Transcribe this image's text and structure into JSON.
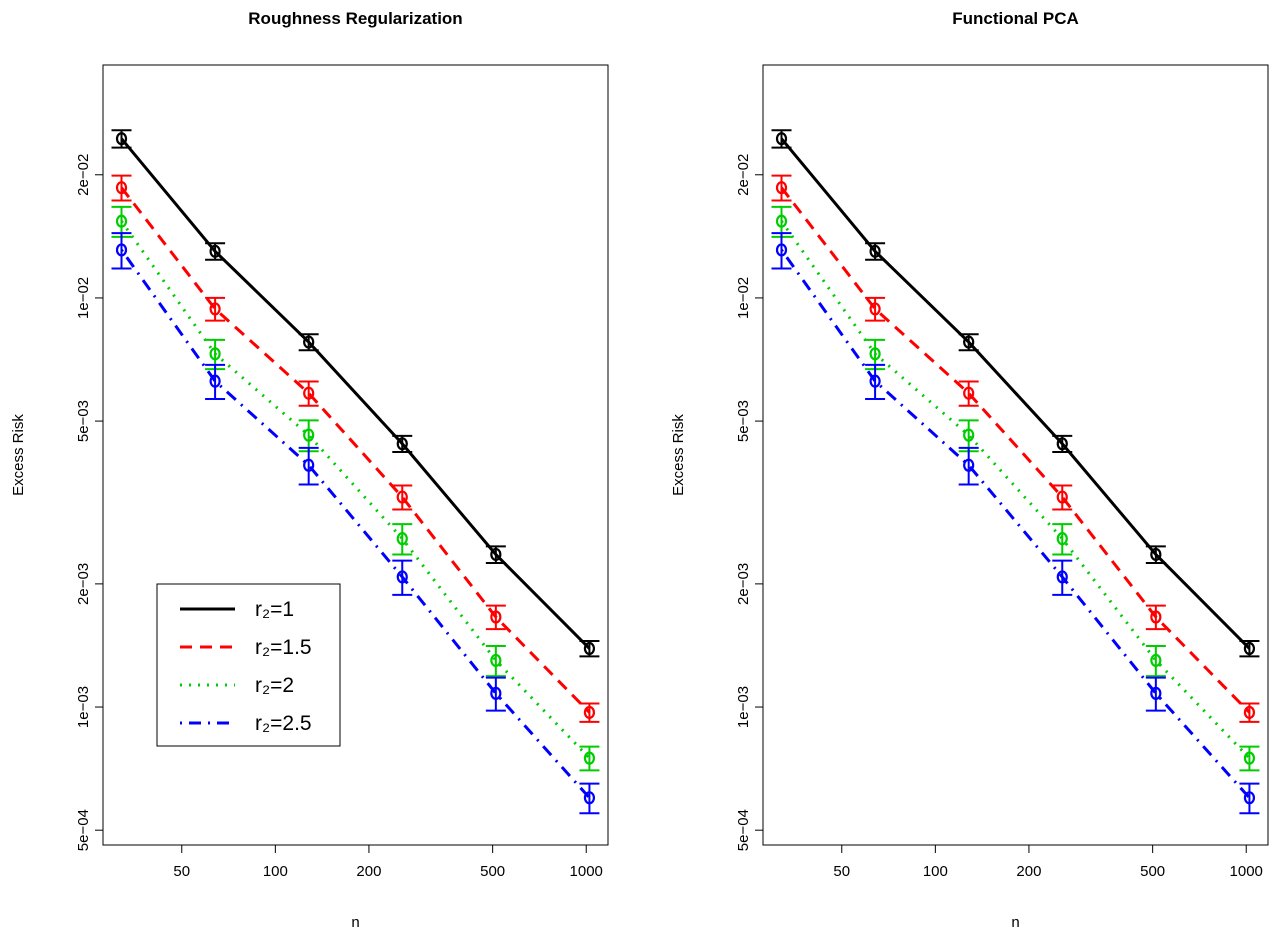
{
  "chart_data": [
    {
      "type": "line",
      "title": "Roughness Regularization",
      "x_label": "n",
      "y_label": "Excess Risk",
      "x": [
        32,
        64,
        128,
        256,
        512,
        1024
      ],
      "xlog": true,
      "ylog": true,
      "xlim": [
        27.9,
        1175
      ],
      "ylim": [
        0.00046,
        0.0371
      ],
      "xticks": [
        50,
        100,
        200,
        500,
        1000
      ],
      "yticks": [
        {
          "value": 0.0005,
          "label": "5e−04"
        },
        {
          "value": 0.001,
          "label": "1e−03"
        },
        {
          "value": 0.002,
          "label": "2e−03"
        },
        {
          "value": 0.005,
          "label": "5e−03"
        },
        {
          "value": 0.01,
          "label": "1e−02"
        },
        {
          "value": 0.02,
          "label": "2e−02"
        }
      ],
      "legend": "bottomleft",
      "series": [
        {
          "name": "r₂=1",
          "color": "#000000",
          "dash": "solid",
          "values": [
            0.0245,
            0.013,
            0.0078,
            0.0044,
            0.00236,
            0.00139
          ],
          "errors": [
            0.0012,
            0.0006,
            0.00035,
            0.0002,
            0.00011,
            6e-05
          ]
        },
        {
          "name": "r₂=1.5",
          "color": "#ff0000",
          "dash": "dashed",
          "values": [
            0.0186,
            0.0094,
            0.00585,
            0.00326,
            0.00166,
            0.00097
          ],
          "errors": [
            0.0013,
            0.0006,
            0.0004,
            0.00022,
            0.00011,
            5e-05
          ]
        },
        {
          "name": "r₂=2",
          "color": "#00cd00",
          "dash": "dotted",
          "values": [
            0.0154,
            0.0073,
            0.00462,
            0.00258,
            0.0013,
            0.00075
          ],
          "errors": [
            0.0013,
            0.0006,
            0.0004,
            0.00022,
            0.00011,
            5e-05
          ]
        },
        {
          "name": "r₂=2.5",
          "color": "#0000ff",
          "dash": "dotdash",
          "values": [
            0.0131,
            0.00626,
            0.0039,
            0.00208,
            0.00108,
            0.0006
          ],
          "errors": [
            0.0013,
            0.0006,
            0.0004,
            0.0002,
            0.0001,
            5e-05
          ]
        }
      ]
    },
    {
      "type": "line",
      "title": "Functional PCA",
      "x_label": "n",
      "y_label": "Excess Risk",
      "x": [
        32,
        64,
        128,
        256,
        512,
        1024
      ],
      "xlog": true,
      "ylog": true,
      "xlim": [
        27.9,
        1175
      ],
      "ylim": [
        0.00046,
        0.0371
      ],
      "xticks": [
        50,
        100,
        200,
        500,
        1000
      ],
      "yticks": [
        {
          "value": 0.0005,
          "label": "5e−04"
        },
        {
          "value": 0.001,
          "label": "1e−03"
        },
        {
          "value": 0.002,
          "label": "2e−03"
        },
        {
          "value": 0.005,
          "label": "5e−03"
        },
        {
          "value": 0.01,
          "label": "1e−02"
        },
        {
          "value": 0.02,
          "label": "2e−02"
        }
      ],
      "series": [
        {
          "color": "#000000",
          "dash": "solid",
          "values": [
            0.0245,
            0.013,
            0.0078,
            0.0044,
            0.00236,
            0.00139
          ],
          "errors": [
            0.0012,
            0.0006,
            0.00035,
            0.0002,
            0.00011,
            6e-05
          ]
        },
        {
          "color": "#ff0000",
          "dash": "dashed",
          "values": [
            0.0186,
            0.0094,
            0.00585,
            0.00326,
            0.00166,
            0.00097
          ],
          "errors": [
            0.0013,
            0.0006,
            0.0004,
            0.00022,
            0.00011,
            5e-05
          ]
        },
        {
          "color": "#00cd00",
          "dash": "dotted",
          "values": [
            0.0154,
            0.0073,
            0.00462,
            0.00258,
            0.0013,
            0.00075
          ],
          "errors": [
            0.0013,
            0.0006,
            0.0004,
            0.00022,
            0.00011,
            5e-05
          ]
        },
        {
          "color": "#0000ff",
          "dash": "dotdash",
          "values": [
            0.0131,
            0.00626,
            0.0039,
            0.00208,
            0.00108,
            0.0006
          ],
          "errors": [
            0.0013,
            0.0006,
            0.0004,
            0.0002,
            0.0001,
            5e-05
          ]
        }
      ]
    }
  ]
}
